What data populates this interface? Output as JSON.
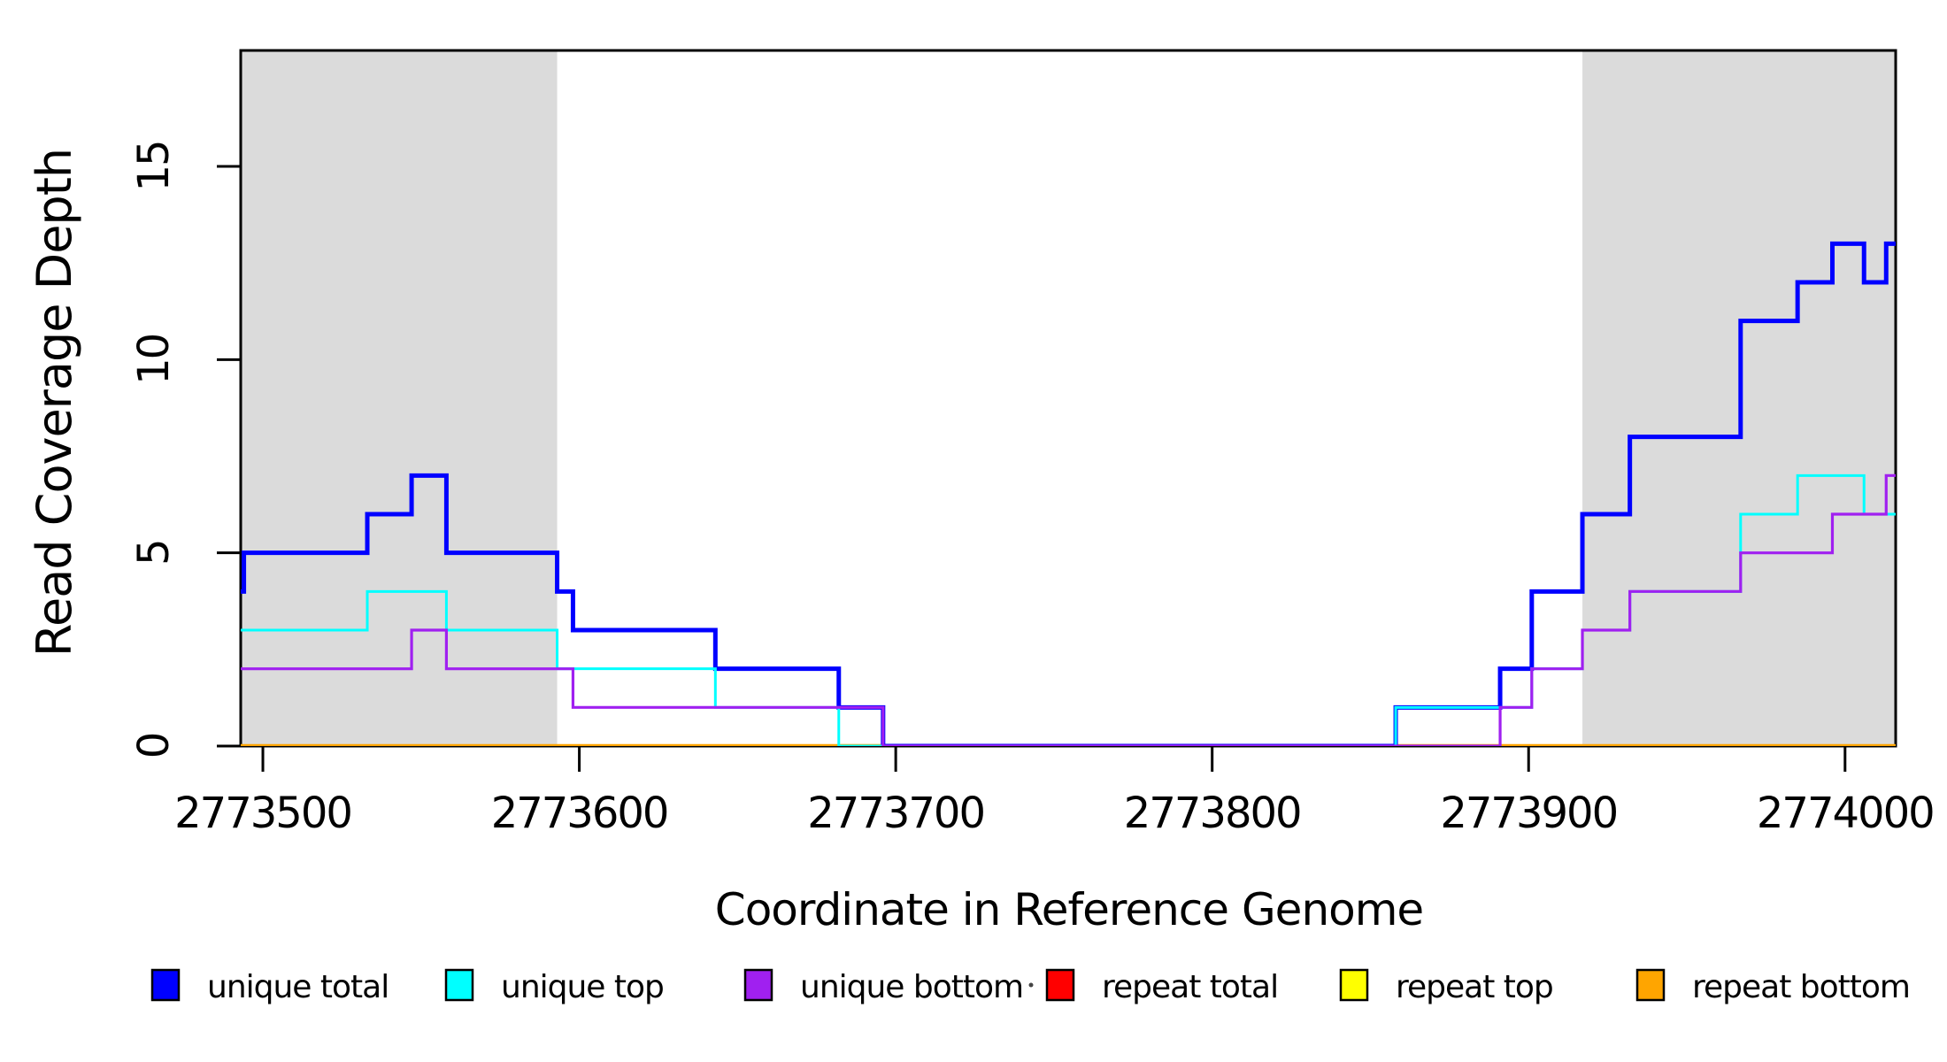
{
  "figure": {
    "xlabel": "Coordinate in Reference Genome",
    "ylabel": "Read Coverage Depth"
  },
  "legend": {
    "items": [
      {
        "label": "unique total",
        "color": "#0000FF"
      },
      {
        "label": "unique top",
        "color": "#00FFFF"
      },
      {
        "label": "unique bottom",
        "color": "#A020F0"
      },
      {
        "label": "repeat total",
        "color": "#FF0000"
      },
      {
        "label": "repeat top",
        "color": "#FFFF00"
      },
      {
        "label": "repeat bottom",
        "color": "#FFA500"
      }
    ]
  },
  "chart_data": {
    "type": "line",
    "subtype": "step-post",
    "title": "",
    "xlabel": "Coordinate in Reference Genome",
    "ylabel": "Read Coverage Depth",
    "xlim": [
      2773493,
      2774016
    ],
    "ylim": [
      0,
      18
    ],
    "x_ticks": [
      2773500,
      2773600,
      2773700,
      2773800,
      2773900,
      2774000
    ],
    "x_tick_labels": [
      "2773500",
      "2773600",
      "2773700",
      "2773800",
      "2773900",
      "2774000"
    ],
    "y_ticks": [
      0,
      5,
      10,
      15
    ],
    "y_tick_labels": [
      "0",
      "5",
      "10",
      "15"
    ],
    "grid": false,
    "legend_position": "bottom",
    "shade_color": "#DBDBDB",
    "shaded_regions": [
      {
        "x0": 2773493,
        "x1": 2773593
      },
      {
        "x0": 2773917,
        "x1": 2774016
      }
    ],
    "series": [
      {
        "name": "repeat total",
        "color": "#FF0000",
        "lw": 3,
        "points": [
          [
            2773493,
            0
          ]
        ]
      },
      {
        "name": "repeat top",
        "color": "#FFFF00",
        "lw": 3,
        "points": [
          [
            2773493,
            0
          ]
        ]
      },
      {
        "name": "repeat bottom",
        "color": "#FFA500",
        "lw": 4.5,
        "points": [
          [
            2773493,
            0
          ]
        ]
      },
      {
        "name": "unique total",
        "color": "#0000FF",
        "lw": 5,
        "points": [
          [
            2773493,
            4
          ],
          [
            2773494,
            5
          ],
          [
            2773533,
            6
          ],
          [
            2773547,
            7
          ],
          [
            2773558,
            5
          ],
          [
            2773593,
            4
          ],
          [
            2773598,
            3
          ],
          [
            2773643,
            2
          ],
          [
            2773682,
            1
          ],
          [
            2773696,
            0
          ],
          [
            2773858,
            1
          ],
          [
            2773891,
            2
          ],
          [
            2773901,
            4
          ],
          [
            2773917,
            6
          ],
          [
            2773932,
            8
          ],
          [
            2773967,
            11
          ],
          [
            2773985,
            12
          ],
          [
            2773996,
            13
          ],
          [
            2774006,
            12
          ],
          [
            2774013,
            13
          ]
        ]
      },
      {
        "name": "unique top",
        "color": "#00FFFF",
        "lw": 3,
        "points": [
          [
            2773493,
            3
          ],
          [
            2773533,
            4
          ],
          [
            2773558,
            3
          ],
          [
            2773593,
            2
          ],
          [
            2773643,
            1
          ],
          [
            2773682,
            0
          ],
          [
            2773858,
            1
          ],
          [
            2773901,
            2
          ],
          [
            2773917,
            3
          ],
          [
            2773932,
            4
          ],
          [
            2773967,
            6
          ],
          [
            2773985,
            7
          ],
          [
            2774006,
            6
          ]
        ]
      },
      {
        "name": "unique bottom",
        "color": "#A020F0",
        "lw": 3.2,
        "points": [
          [
            2773493,
            2
          ],
          [
            2773547,
            3
          ],
          [
            2773558,
            2
          ],
          [
            2773598,
            1
          ],
          [
            2773696,
            0
          ],
          [
            2773891,
            1
          ],
          [
            2773901,
            2
          ],
          [
            2773917,
            3
          ],
          [
            2773932,
            4
          ],
          [
            2773967,
            5
          ],
          [
            2773996,
            6
          ],
          [
            2774013,
            7
          ]
        ]
      }
    ],
    "draw_order": [
      "repeat total",
      "repeat top",
      "repeat bottom",
      "unique total",
      "unique top",
      "unique bottom"
    ]
  }
}
